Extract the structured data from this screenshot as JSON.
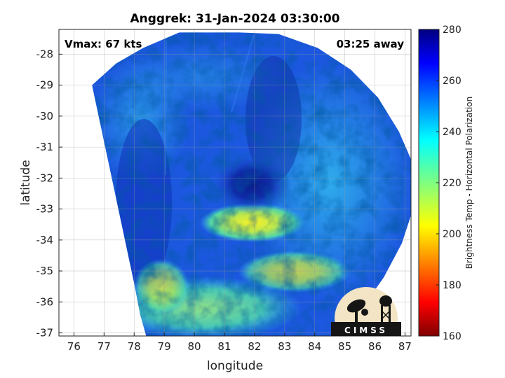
{
  "title": "Anggrek: 31-Jan-2024 03:30:00",
  "annotations": {
    "vmax": "Vmax: 67 kts",
    "time_away": "03:25 away"
  },
  "xaxis": {
    "label": "longitude",
    "range": [
      75.5,
      87.2
    ],
    "ticks": [
      76,
      77,
      78,
      79,
      80,
      81,
      82,
      83,
      84,
      85,
      86,
      87
    ]
  },
  "yaxis": {
    "label": "latitude",
    "range": [
      -37.1,
      -27.2
    ],
    "ticks": [
      -28,
      -29,
      -30,
      -31,
      -32,
      -33,
      -34,
      -35,
      -36,
      -37
    ]
  },
  "colorbar": {
    "label": "Brightness Temp - Horizontal Polarization",
    "range": [
      160,
      280
    ],
    "ticks": [
      160,
      180,
      200,
      220,
      240,
      260,
      280
    ],
    "colormap": "jet"
  },
  "logo": {
    "text": "CIMSS"
  },
  "storm": {
    "center_lon": 81.9,
    "center_lat": -32.2
  }
}
